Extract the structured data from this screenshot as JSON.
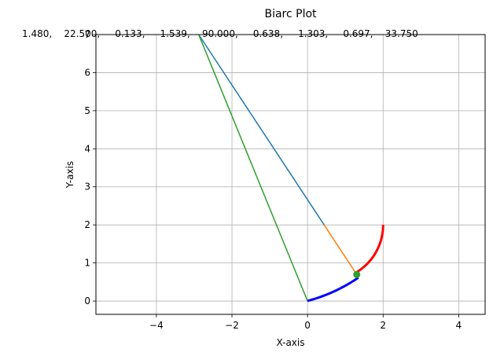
{
  "chart_data": {
    "type": "line",
    "title": "Biarc Plot",
    "xlabel": "X-axis",
    "ylabel": "Y-axis",
    "xlim": [
      -5.6,
      4.7
    ],
    "ylim": [
      -0.35,
      7.0
    ],
    "grid": true,
    "x_ticks": [
      -4,
      -2,
      0,
      2,
      4
    ],
    "x_tick_labels": [
      "−4",
      "−2",
      "0",
      "2",
      "4"
    ],
    "y_ticks": [
      0,
      1,
      2,
      3,
      4,
      5,
      6,
      7
    ],
    "y_tick_labels": [
      "0",
      "1",
      "2",
      "3",
      "4",
      "5",
      "6",
      "7"
    ],
    "annotation": "1.480,    22.500,     0.133,     1.539,    90.000,     0.638,     1.303,     0.697,    33.750",
    "series": [
      {
        "color": "#1f77b4",
        "kind": "line",
        "points": [
          [
            -2.88,
            7.0
          ],
          [
            0.44,
            2.0
          ]
        ]
      },
      {
        "color": "#ff7f0e",
        "kind": "line",
        "points": [
          [
            0.44,
            2.0
          ],
          [
            1.303,
            0.697
          ]
        ]
      },
      {
        "color": "#2ca02c",
        "kind": "line",
        "points": [
          [
            -2.88,
            7.0
          ],
          [
            0.0,
            0.0
          ]
        ]
      },
      {
        "color": "#0000ff",
        "kind": "arc",
        "center": [
          -1.11,
          4.23
        ],
        "radius": 4.37,
        "from": [
          0.0,
          0.0
        ],
        "to": [
          1.303,
          0.697
        ]
      },
      {
        "color": "#ff0000",
        "kind": "arc",
        "center": [
          0.55,
          2.0
        ],
        "radius": 1.45,
        "from": [
          1.303,
          0.697
        ],
        "to": [
          2.0,
          2.0
        ]
      }
    ],
    "points": [
      {
        "color": "#2ca02c",
        "x": 1.303,
        "y": 0.697
      }
    ]
  }
}
